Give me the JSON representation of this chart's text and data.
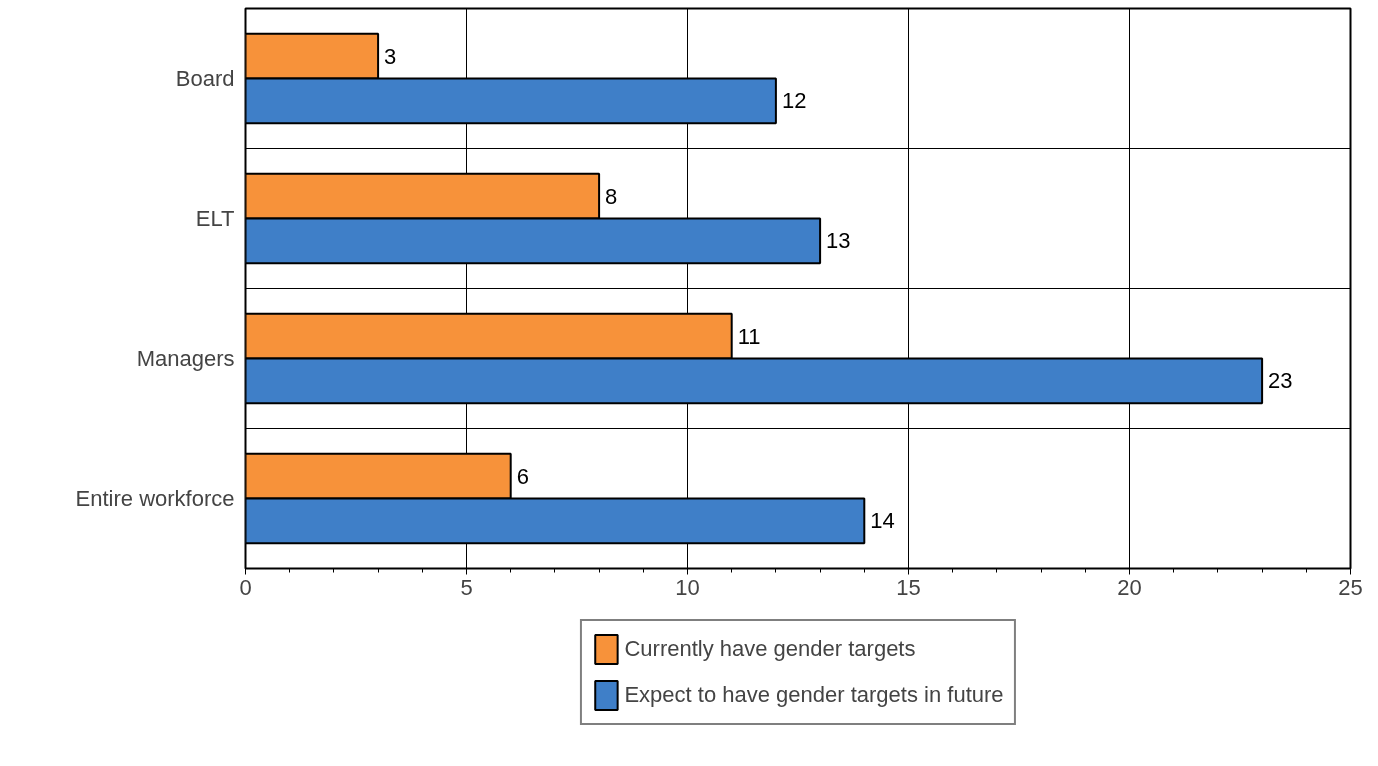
{
  "chart_data": {
    "type": "bar",
    "orientation": "horizontal",
    "categories": [
      "Board",
      "ELT",
      "Managers",
      "Entire workforce"
    ],
    "series": [
      {
        "name": "Currently have gender targets",
        "color": "#f7923a",
        "values": [
          3,
          8,
          11,
          6
        ]
      },
      {
        "name": "Expect to have gender targets in future",
        "color": "#3f7fc8",
        "values": [
          12,
          13,
          23,
          14
        ]
      }
    ],
    "xlim": [
      0,
      25
    ],
    "xticks": [
      0,
      5,
      10,
      15,
      20,
      25
    ],
    "grid": true,
    "legend": "bottom",
    "data_labels": true
  }
}
